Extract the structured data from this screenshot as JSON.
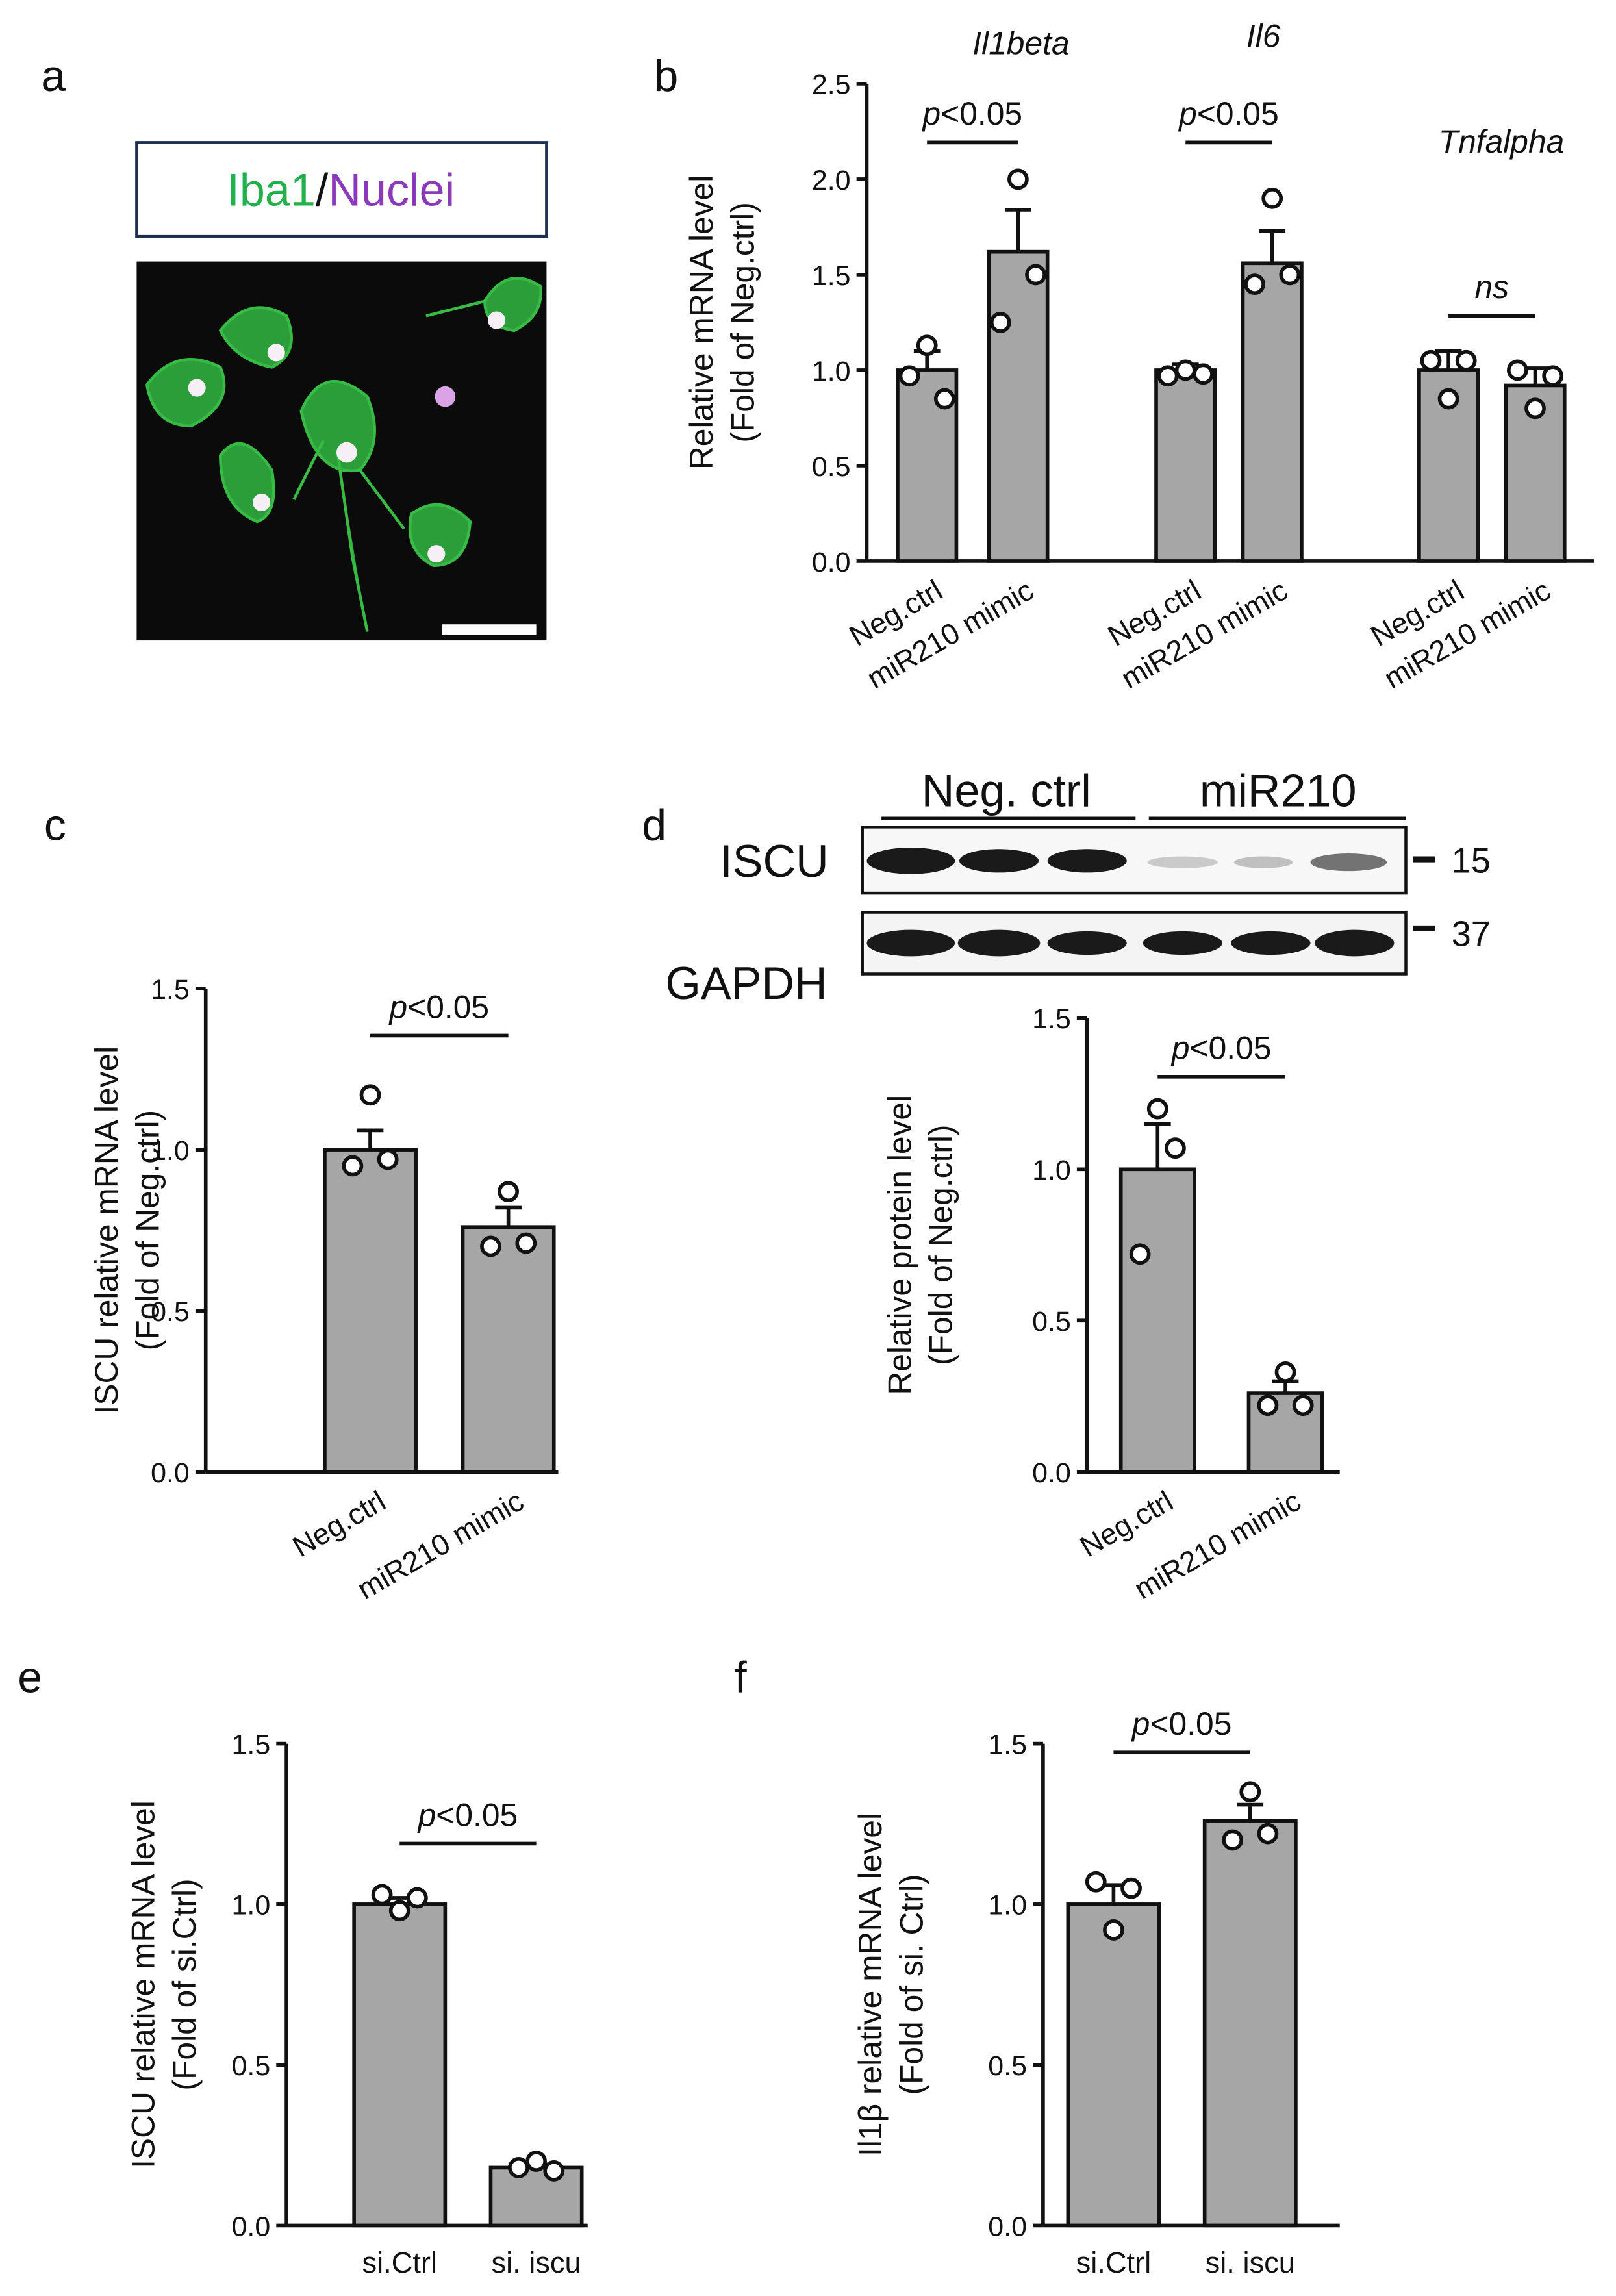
{
  "panel_a": {
    "label": "a",
    "stain": "Iba1",
    "separator": "/",
    "counterstain": "Nuclei"
  },
  "blot": {
    "groups": [
      "Neg. ctrl",
      "miR210"
    ],
    "rows": [
      "ISCU",
      "GAPDH"
    ],
    "markers": [
      "15",
      "37"
    ]
  },
  "chart_data": [
    {
      "type": "bar",
      "label": "b",
      "ylabel": [
        "Relative mRNA level",
        "(Fold of Neg.ctrl)"
      ],
      "ylim": [
        0,
        2.5
      ],
      "yticks": [
        {
          "value": 0,
          "label": "0.0"
        },
        0.5,
        {
          "value": 1,
          "label": "1.0"
        },
        1.5,
        {
          "value": 2,
          "label": "2.0"
        },
        2.5
      ],
      "color": "#a6a6a6",
      "groups": [
        {
          "name": "Il1beta",
          "categories": [
            "Neg.ctrl",
            "miR210 mimic"
          ],
          "values": [
            1.0,
            1.62
          ],
          "errors": [
            0.1,
            0.22
          ],
          "points": [
            [
              0.97,
              1.13,
              0.85
            ],
            [
              1.25,
              2.0,
              1.5
            ]
          ],
          "annotation": "p<0.05"
        },
        {
          "name": "Il6",
          "categories": [
            "Neg.ctrl",
            "miR210 mimic"
          ],
          "values": [
            1.0,
            1.56
          ],
          "errors": [
            0.03,
            0.17
          ],
          "points": [
            [
              0.97,
              1.0,
              0.98
            ],
            [
              1.45,
              1.9,
              1.5
            ]
          ],
          "annotation": "p<0.05"
        },
        {
          "name": "Tnfalpha",
          "categories": [
            "Neg.ctrl",
            "miR210 mimic"
          ],
          "values": [
            1.0,
            0.92
          ],
          "errors": [
            0.1,
            0.09
          ],
          "points": [
            [
              1.05,
              0.85,
              1.05
            ],
            [
              1.0,
              0.8,
              0.97
            ]
          ],
          "annotation": "ns"
        }
      ]
    },
    {
      "type": "bar",
      "label": "c",
      "ylabel": [
        "ISCU relative mRNA level",
        "(Fold of Neg.ctrl)"
      ],
      "ylim": [
        0,
        1.5
      ],
      "yticks": [
        {
          "value": 0,
          "label": "0.0"
        },
        0.5,
        {
          "value": 1,
          "label": "1.0"
        },
        1.5
      ],
      "color": "#a6a6a6",
      "groups": [
        {
          "categories": [
            "Neg.ctrl",
            "miR210 mimic"
          ],
          "values": [
            1.0,
            0.76
          ],
          "errors": [
            0.06,
            0.06
          ],
          "points": [
            [
              0.95,
              1.17,
              0.97
            ],
            [
              0.7,
              0.87,
              0.71
            ]
          ],
          "annotation": "p<0.05"
        }
      ]
    },
    {
      "type": "bar",
      "label": "d",
      "ylabel": [
        "Relative protein level",
        "(Fold of Neg.ctrl)"
      ],
      "ylim": [
        0,
        1.5
      ],
      "yticks": [
        {
          "value": 0,
          "label": "0.0"
        },
        0.5,
        {
          "value": 1,
          "label": "1.0"
        },
        1.5
      ],
      "color": "#a6a6a6",
      "groups": [
        {
          "categories": [
            "Neg.ctrl",
            "miR210 mimic"
          ],
          "values": [
            1.0,
            0.26
          ],
          "errors": [
            0.15,
            0.04
          ],
          "points": [
            [
              0.72,
              1.2,
              1.07
            ],
            [
              0.22,
              0.33,
              0.22
            ]
          ],
          "annotation": "p<0.05"
        }
      ]
    },
    {
      "type": "bar",
      "label": "e",
      "ylabel": [
        "ISCU relative mRNA level",
        "(Fold of si.Ctrl)"
      ],
      "ylim": [
        0,
        1.5
      ],
      "yticks": [
        {
          "value": 0,
          "label": "0.0"
        },
        0.5,
        {
          "value": 1,
          "label": "1.0"
        },
        1.5
      ],
      "color": "#a6a6a6",
      "groups": [
        {
          "categories": [
            "si.Ctrl",
            "si. iscu"
          ],
          "values": [
            1.0,
            0.18
          ],
          "errors": [
            0.02,
            0.01
          ],
          "points": [
            [
              1.03,
              0.98,
              1.02
            ],
            [
              0.18,
              0.2,
              0.17
            ]
          ],
          "annotation": "p<0.05"
        }
      ]
    },
    {
      "type": "bar",
      "label": "f",
      "ylabel": [
        "Il1β relative mRNA level",
        "(Fold of si. Ctrl)"
      ],
      "ylim": [
        0,
        1.5
      ],
      "yticks": [
        {
          "value": 0,
          "label": "0.0"
        },
        0.5,
        {
          "value": 1,
          "label": "1.0"
        },
        1.5
      ],
      "color": "#a6a6a6",
      "groups": [
        {
          "categories": [
            "si.Ctrl",
            "si. iscu"
          ],
          "values": [
            1.0,
            1.26
          ],
          "errors": [
            0.06,
            0.05
          ],
          "points": [
            [
              1.07,
              0.92,
              1.05
            ],
            [
              1.2,
              1.35,
              1.22
            ]
          ],
          "annotation": "p<0.05"
        }
      ]
    }
  ]
}
